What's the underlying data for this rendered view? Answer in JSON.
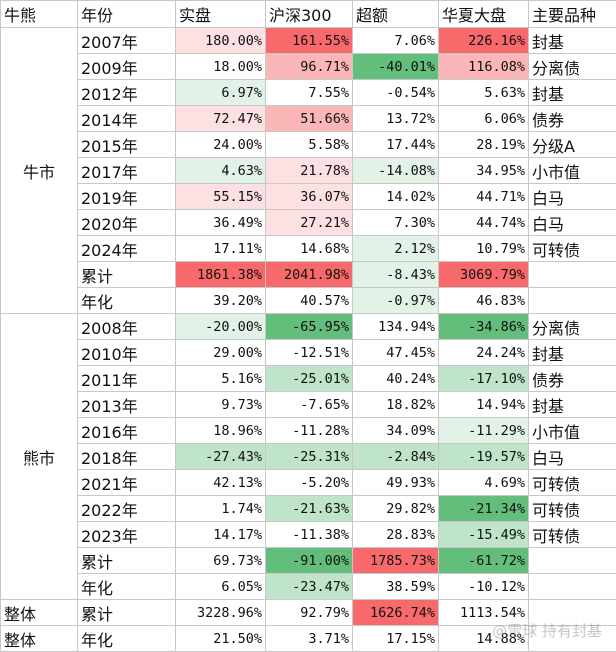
{
  "header": [
    "牛熊",
    "年份",
    "实盘",
    "沪深300",
    "超额",
    "华夏大盘",
    "主要品种"
  ],
  "sections": [
    {
      "label": "牛市",
      "rows": [
        [
          "2007年",
          "180.00%",
          "161.55%",
          "7.06%",
          "226.16%",
          "封基"
        ],
        [
          "2009年",
          "18.00%",
          "96.71%",
          "-40.01%",
          "116.08%",
          "分离债"
        ],
        [
          "2012年",
          "6.97%",
          "7.55%",
          "-0.54%",
          "5.63%",
          "封基"
        ],
        [
          "2014年",
          "72.47%",
          "51.66%",
          "13.72%",
          "6.06%",
          "债券"
        ],
        [
          "2015年",
          "24.00%",
          "5.58%",
          "17.44%",
          "28.19%",
          "分级A"
        ],
        [
          "2017年",
          "4.63%",
          "21.78%",
          "-14.08%",
          "34.95%",
          "小市值"
        ],
        [
          "2019年",
          "55.15%",
          "36.07%",
          "14.02%",
          "44.71%",
          "白马"
        ],
        [
          "2020年",
          "36.49%",
          "27.21%",
          "7.30%",
          "44.74%",
          "白马"
        ],
        [
          "2024年",
          "17.11%",
          "14.68%",
          "2.12%",
          "10.79%",
          "可转债"
        ],
        [
          "累计",
          "1861.38%",
          "2041.98%",
          "-8.43%",
          "3069.79%"
        ],
        [
          "年化",
          "39.20%",
          "40.57%",
          "-0.97%",
          "46.83%"
        ]
      ]
    },
    {
      "label": "熊市",
      "rows": [
        [
          "2008年",
          "-20.00%",
          "-65.95%",
          "134.94%",
          "-34.86%",
          "分离债"
        ],
        [
          "2010年",
          "29.00%",
          "-12.51%",
          "47.45%",
          "24.24%",
          "封基"
        ],
        [
          "2011年",
          "5.16%",
          "-25.01%",
          "40.24%",
          "-17.10%",
          "债券"
        ],
        [
          "2013年",
          "9.73%",
          "-7.65%",
          "18.82%",
          "14.94%",
          "封基"
        ],
        [
          "2016年",
          "18.96%",
          "-11.28%",
          "34.09%",
          "-11.29%",
          "小市值"
        ],
        [
          "2018年",
          "-27.43%",
          "-25.31%",
          "-2.84%",
          "-19.57%",
          "白马"
        ],
        [
          "2021年",
          "42.13%",
          "-5.20%",
          "49.93%",
          "4.69%",
          "可转债"
        ],
        [
          "2022年",
          "1.74%",
          "-21.63%",
          "29.82%",
          "-21.34%",
          "可转债"
        ],
        [
          "2023年",
          "14.17%",
          "-11.38%",
          "28.83%",
          "-15.49%",
          "可转债"
        ],
        [
          "累计",
          "69.73%",
          "-91.00%",
          "1785.73%",
          "-61.72%"
        ],
        [
          "年化",
          "6.05%",
          "-23.47%",
          "38.59%",
          "-10.12%"
        ]
      ]
    }
  ],
  "overall_rows": [
    [
      "整体",
      "累计",
      "3228.96%",
      "92.79%",
      "1626.74%",
      "1113.54%"
    ],
    [
      "整体",
      "年化",
      "21.50%",
      "3.71%",
      "17.15%",
      "14.88%"
    ]
  ],
  "watermark": "@雪球 持有封基"
}
